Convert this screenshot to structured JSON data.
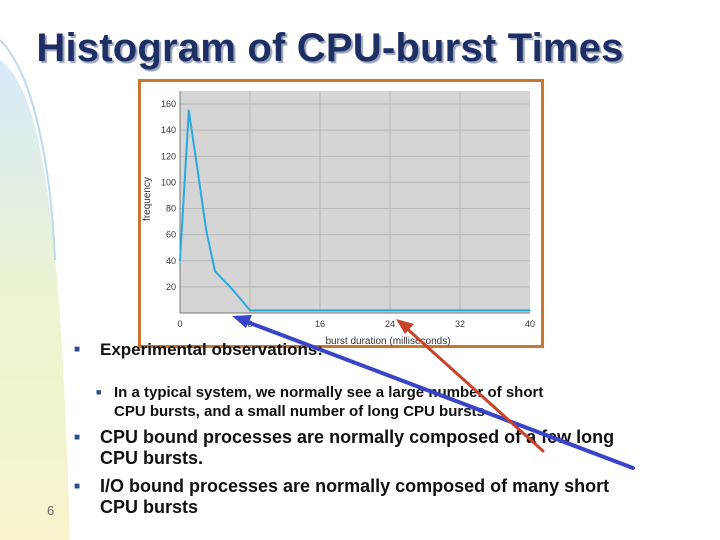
{
  "slide": {
    "title": "Histogram of CPU-burst Times",
    "page_number": "6"
  },
  "bullets": [
    {
      "level": 1,
      "text": "Experimental observations:"
    },
    {
      "level": 2,
      "lines": [
        "In a typical system, we normally see a large number of short",
        "CPU bursts, and a small number of long CPU bursts"
      ]
    },
    {
      "level": 1,
      "lines": [
        "CPU bound processes are normally composed of a few long",
        "CPU bursts."
      ]
    },
    {
      "level": 1,
      "lines": [
        "I/O bound processes are normally composed of many short",
        "CPU bursts"
      ]
    }
  ],
  "chart_data": {
    "type": "line",
    "title": "",
    "xlabel": "burst duration (milliseconds)",
    "ylabel": "frequency",
    "xlim": [
      0,
      40
    ],
    "ylim": [
      0,
      170
    ],
    "xticks": [
      0,
      8,
      16,
      24,
      32,
      40
    ],
    "yticks": [
      20,
      40,
      60,
      80,
      100,
      120,
      140,
      160
    ],
    "grid": true,
    "x": [
      0,
      1,
      2,
      3,
      4,
      5,
      6,
      7,
      8,
      40
    ],
    "y": [
      40,
      155,
      110,
      63,
      32,
      25,
      18,
      10,
      2,
      2
    ],
    "colors": {
      "line": "#2aa9e0",
      "plot_bg": "#d5d5d5",
      "frame": "#c9772f",
      "grid": "#b8b8b8"
    }
  },
  "annotations": {
    "arrow_colors": [
      "#3845c8",
      "#c8432a"
    ]
  }
}
